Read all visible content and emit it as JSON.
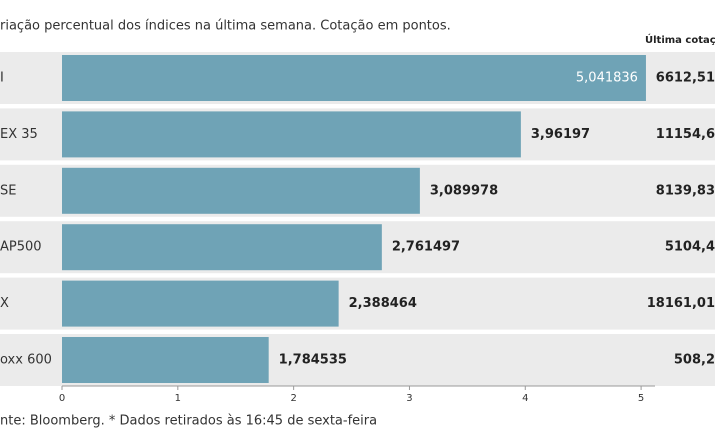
{
  "chart_data": {
    "type": "barh",
    "subtitle": "riação percentual dos índices na última semana. Cotação em pontos.",
    "categories": [
      "I",
      "EX 35",
      "SE",
      "AP500",
      "X",
      "oxx 600"
    ],
    "values": [
      5.041836,
      3.96197,
      3.089978,
      2.761497,
      2.388464,
      1.784535
    ],
    "value_labels": [
      "5,041836",
      "3,96197",
      "3,089978",
      "2,761497",
      "2,388464",
      "1,784535"
    ],
    "color": "#6fa3b6",
    "xlim": [
      0,
      5.12
    ],
    "xticks": [
      0,
      1,
      2,
      3,
      4,
      5
    ],
    "quote_header": "Última cotaç",
    "quotes": [
      "6612,51",
      "11154,6",
      "8139,83",
      "5104,4",
      "18161,01",
      "508,2"
    ],
    "source": "nte: Bloomberg.  * Dados retirados às 16:45 de sexta-feira"
  }
}
